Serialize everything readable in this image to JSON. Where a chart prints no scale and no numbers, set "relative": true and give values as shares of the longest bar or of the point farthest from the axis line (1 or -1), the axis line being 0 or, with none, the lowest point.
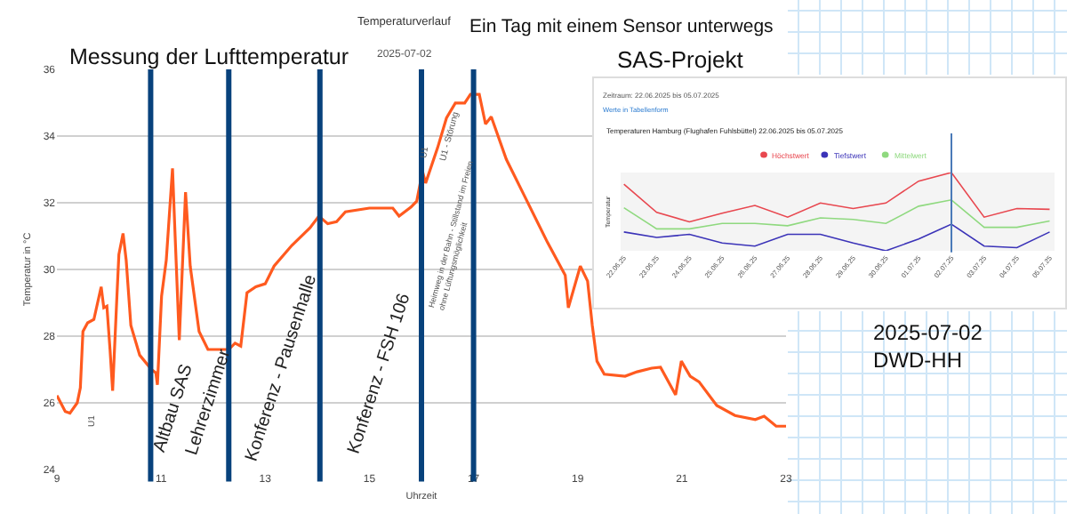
{
  "chart_data": [
    {
      "type": "line",
      "title": "Temperaturverlauf",
      "subtitle": "2025-07-02",
      "xlabel": "Uhrzeit",
      "ylabel": "Temperatur in °C",
      "x": [
        9.0,
        9.16,
        9.25,
        9.39,
        9.45,
        9.5,
        9.59,
        9.71,
        9.85,
        9.9,
        9.96,
        10.02,
        10.07,
        10.15,
        10.19,
        10.27,
        10.33,
        10.42,
        10.59,
        10.82,
        10.9,
        10.93,
        11.01,
        11.1,
        11.22,
        11.27,
        11.35,
        11.47,
        11.56,
        11.73,
        11.9,
        12.3,
        12.42,
        12.53,
        12.65,
        12.82,
        13.0,
        13.17,
        13.51,
        13.86,
        14.03,
        14.2,
        14.37,
        14.54,
        15.0,
        15.45,
        15.57,
        15.8,
        15.91,
        16.02,
        16.08,
        16.31,
        16.48,
        16.65,
        16.83,
        16.94,
        17.11,
        17.23,
        17.34,
        17.63,
        17.97,
        18.42,
        18.76,
        18.82,
        19.05,
        19.19,
        19.28,
        19.37,
        19.51,
        19.91,
        20.14,
        20.42,
        20.59,
        20.88,
        20.99,
        21.16,
        21.33,
        21.67,
        22.02,
        22.41,
        22.58,
        22.81,
        23.0
      ],
      "series": [
        {
          "color": "#ff5a1f",
          "values": [
            26.22,
            25.74,
            25.69,
            26.0,
            26.45,
            28.14,
            28.4,
            28.5,
            29.48,
            28.85,
            28.9,
            27.6,
            26.36,
            29.12,
            30.45,
            31.08,
            30.28,
            28.32,
            27.43,
            26.99,
            26.9,
            26.54,
            29.2,
            30.28,
            33.03,
            31.0,
            27.88,
            32.32,
            30.1,
            28.14,
            27.6,
            27.6,
            27.79,
            27.7,
            29.3,
            29.48,
            29.57,
            30.1,
            30.72,
            31.25,
            31.6,
            31.37,
            31.43,
            31.73,
            31.84,
            31.84,
            31.6,
            31.87,
            32.05,
            32.94,
            32.59,
            33.65,
            34.54,
            34.99,
            34.99,
            35.25,
            35.25,
            34.36,
            34.58,
            33.3,
            32.23,
            30.81,
            29.83,
            28.85,
            30.1,
            29.65,
            28.32,
            27.25,
            26.86,
            26.8,
            26.93,
            27.04,
            27.07,
            26.24,
            27.25,
            26.8,
            26.63,
            25.92,
            25.62,
            25.5,
            25.6,
            25.3,
            25.3
          ]
        }
      ],
      "xlim": [
        9,
        23
      ],
      "xticks": [
        9,
        11,
        13,
        15,
        17,
        19,
        21,
        23
      ],
      "ylim": [
        24,
        36
      ],
      "yticks": [
        24,
        26,
        28,
        30,
        32,
        34,
        36
      ],
      "grid": "y",
      "marker": "none",
      "line_style": "solid",
      "ref_lines": [
        {
          "axis": "x",
          "value": 10.8,
          "color": "#08427c"
        },
        {
          "axis": "x",
          "value": 12.3,
          "color": "#08427c"
        },
        {
          "axis": "x",
          "value": 14.05,
          "color": "#08427c"
        },
        {
          "axis": "x",
          "value": 16.0,
          "color": "#08427c"
        },
        {
          "axis": "x",
          "value": 17.0,
          "color": "#08427c"
        }
      ],
      "annotations": [
        "Messung der Lufttemperatur",
        "Ein Tag mit einem Sensor unterwegs",
        "SAS-Projekt",
        "2025-07-02\nDWD-HH",
        "U1",
        "Altbau SAS",
        "Lehrerzimmer",
        "Konferenz - Pausenhalle",
        "Konferenz - FSH 106",
        "U1",
        "U1 - Störung",
        "Heimweg in der Bahn - Stillstand im Freien\nohne Lüftungsmöglichkeit"
      ]
    },
    {
      "type": "line",
      "title": "Temperaturen Hamburg (Flughafen Fuhlsbüttel) 22.06.2025 bis 05.07.2025",
      "subtitle": "Zeitraum: 22.06.2025 bis 05.07.2025",
      "ylabel": "Temperatur",
      "relative": true,
      "categories": [
        "22.06.25",
        "23.06.25",
        "24.06.25",
        "25.06.25",
        "26.06.25",
        "27.06.25",
        "28.06.25",
        "29.06.25",
        "30.06.25",
        "01.07.25",
        "02.07.25",
        "03.07.25",
        "04.07.25",
        "05.07.25"
      ],
      "series": [
        {
          "name": "Höchstwert",
          "color": "#e8474f",
          "values": [
            0.85,
            0.49,
            0.37,
            0.48,
            0.58,
            0.43,
            0.61,
            0.54,
            0.61,
            0.89,
            1.0,
            0.43,
            0.54,
            0.53
          ]
        },
        {
          "name": "Tiefstwert",
          "color": "#3b33b8",
          "values": [
            0.24,
            0.17,
            0.21,
            0.1,
            0.06,
            0.21,
            0.21,
            0.1,
            0.0,
            0.15,
            0.34,
            0.06,
            0.04,
            0.24
          ]
        },
        {
          "name": "Mittelwert",
          "color": "#8fd97f",
          "values": [
            0.55,
            0.28,
            0.28,
            0.35,
            0.35,
            0.32,
            0.42,
            0.4,
            0.35,
            0.57,
            0.65,
            0.3,
            0.3,
            0.38
          ]
        }
      ],
      "ref_lines": [
        {
          "axis": "x",
          "value": "02.07.25",
          "color": "#4a7ab8"
        }
      ],
      "legend": "top",
      "marker": "none",
      "line_style": "solid",
      "tick_labels": "x",
      "annotations": [
        "Werte in Tabellenform"
      ]
    }
  ]
}
